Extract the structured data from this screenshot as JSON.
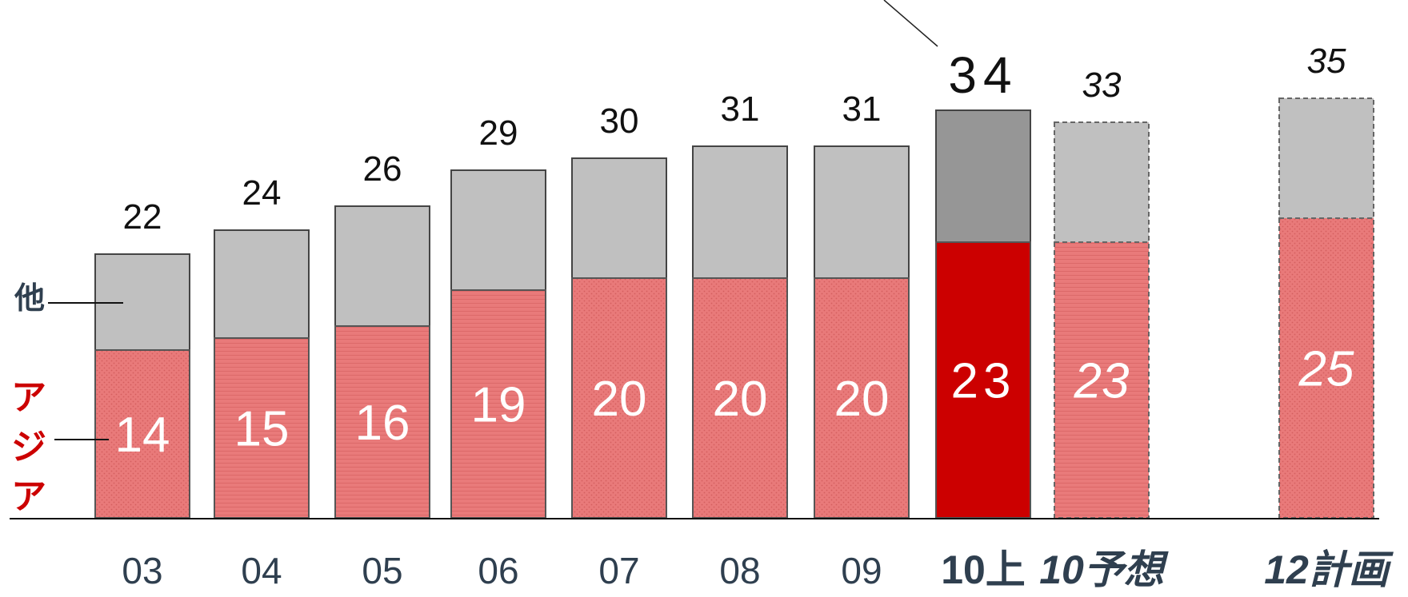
{
  "chart_data": {
    "type": "bar",
    "stacked": true,
    "categories": [
      "03",
      "04",
      "05",
      "06",
      "07",
      "08",
      "09",
      "10上",
      "10予想",
      "12計画"
    ],
    "series": [
      {
        "name": "アジア",
        "values": [
          14,
          15,
          16,
          19,
          20,
          20,
          20,
          23,
          23,
          25
        ],
        "color": "#e97a7a"
      },
      {
        "name": "他",
        "values": [
          8,
          9,
          10,
          10,
          10,
          11,
          11,
          11,
          10,
          10
        ],
        "color": "#c0c0c0"
      }
    ],
    "totals": [
      22,
      24,
      26,
      29,
      30,
      31,
      31,
      34,
      33,
      35
    ],
    "highlight": {
      "category": "10上",
      "asia_color": "#cc0000",
      "other_color": "#969696"
    },
    "dashed_categories": [
      "10予想",
      "12計画"
    ],
    "ylim": [
      0,
      35
    ],
    "grid": false,
    "legend": {
      "other": "他",
      "asia": "アジア",
      "placement": "left"
    }
  }
}
